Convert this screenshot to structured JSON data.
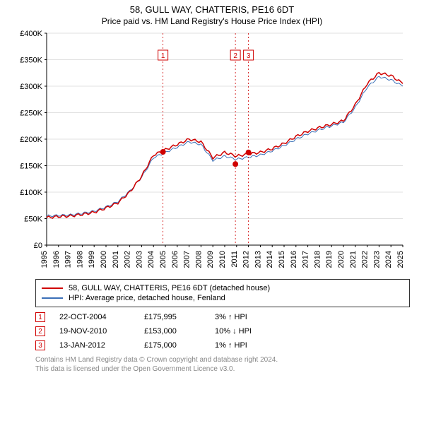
{
  "title": "58, GULL WAY, CHATTERIS, PE16 6DT",
  "subtitle": "Price paid vs. HM Land Registry's House Price Index (HPI)",
  "chart": {
    "type": "line",
    "background_color": "#ffffff",
    "grid_color": "#e0e0e0",
    "axis_color": "#000000",
    "x_years": [
      1995,
      1996,
      1997,
      1998,
      1999,
      2000,
      2001,
      2002,
      2003,
      2004,
      2005,
      2006,
      2007,
      2008,
      2009,
      2010,
      2011,
      2012,
      2013,
      2014,
      2015,
      2016,
      2017,
      2018,
      2019,
      2020,
      2021,
      2022,
      2023,
      2024,
      2025
    ],
    "ylim": [
      0,
      400000
    ],
    "ytick_step": 50000,
    "ytick_labels": [
      "£0",
      "£50K",
      "£100K",
      "£150K",
      "£200K",
      "£250K",
      "£300K",
      "£350K",
      "£400K"
    ],
    "series": [
      {
        "name": "property",
        "label": "58, GULL WAY, CHATTERIS, PE16 6DT (detached house)",
        "color": "#d00000",
        "width": 1.5,
        "values_by_year": [
          52,
          54,
          55,
          58,
          62,
          70,
          80,
          100,
          130,
          170,
          180,
          190,
          200,
          195,
          165,
          175,
          168,
          172,
          175,
          182,
          192,
          205,
          215,
          222,
          228,
          235,
          265,
          305,
          325,
          320,
          305
        ],
        "scale": 1000
      },
      {
        "name": "hpi",
        "label": "HPI: Average price, detached house, Fenland",
        "color": "#3a6fb7",
        "width": 1,
        "values_by_year": [
          55,
          56,
          57,
          60,
          64,
          72,
          82,
          102,
          128,
          165,
          175,
          185,
          195,
          190,
          160,
          168,
          162,
          166,
          170,
          178,
          188,
          200,
          210,
          218,
          225,
          232,
          260,
          298,
          318,
          312,
          300
        ],
        "scale": 1000
      }
    ],
    "transactions": [
      {
        "n": "1",
        "year": 2004.8,
        "price": 175995,
        "date": "22-OCT-2004",
        "pct": "3% ↑ HPI",
        "color": "#d00000"
      },
      {
        "n": "2",
        "year": 2010.9,
        "price": 153000,
        "date": "19-NOV-2010",
        "pct": "10% ↓ HPI",
        "color": "#d00000"
      },
      {
        "n": "3",
        "year": 2012.0,
        "price": 175000,
        "date": "13-JAN-2012",
        "pct": "1% ↑ HPI",
        "color": "#d00000"
      }
    ],
    "transaction_line_color": "#d00000",
    "transaction_dot_color": "#d00000",
    "label_fontsize": 11
  },
  "legend_border": "#333333",
  "attribution_color": "#888888",
  "attribution": [
    "Contains HM Land Registry data © Crown copyright and database right 2024.",
    "This data is licensed under the Open Government Licence v3.0."
  ]
}
